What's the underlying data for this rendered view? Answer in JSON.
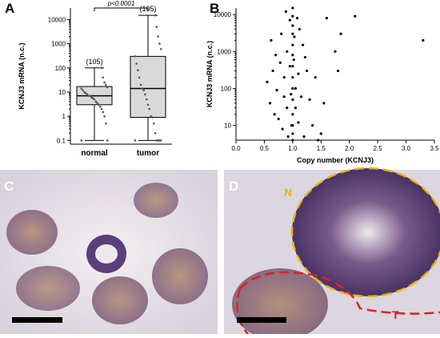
{
  "chart_data": [
    {
      "type": "box",
      "panel_label": "A",
      "ylabel": "KCNJ3 mRNA (n.c.)",
      "log_scale": true,
      "categories": [
        "normal",
        "tumor"
      ],
      "n_labels": [
        "(105)",
        "(105)"
      ],
      "annotation": "p<0.0001",
      "min": [
        0.1,
        0.1
      ],
      "q1": [
        3,
        0.9
      ],
      "median": [
        7,
        14
      ],
      "q3": [
        17,
        300
      ],
      "max": [
        100,
        15000
      ],
      "box_color": "#d9d9d9",
      "points": [
        [
          0.1,
          0.1,
          0.5,
          1,
          1.5,
          2,
          2.5,
          3,
          3.5,
          4,
          5,
          5.5,
          6,
          7,
          7,
          8,
          9,
          10,
          12,
          14,
          16,
          20,
          25,
          40,
          100
        ],
        [
          0.1,
          0.1,
          0.1,
          0.1,
          0.1,
          0.2,
          0.5,
          0.9,
          1,
          2,
          3,
          5,
          8,
          12,
          14,
          20,
          40,
          80,
          150,
          300,
          600,
          1000,
          2000,
          5000,
          15000
        ]
      ],
      "ylim": [
        0.07,
        30000
      ],
      "yticks": [
        0.1,
        1,
        10,
        100,
        1000,
        10000
      ]
    },
    {
      "type": "scatter",
      "panel_label": "B",
      "ylabel": "KCNJ3 mRNA (n.c.)",
      "xlabel": "Copy number (KCNJ3)",
      "log_scale": true,
      "color": "#000000",
      "x": [
        0.55,
        0.6,
        0.62,
        0.65,
        0.68,
        0.7,
        0.72,
        0.75,
        0.78,
        0.8,
        0.82,
        0.85,
        0.85,
        0.88,
        0.9,
        0.9,
        0.92,
        0.95,
        0.95,
        0.97,
        0.98,
        1,
        1,
        1,
        1,
        1,
        1,
        1,
        1,
        1,
        1,
        1,
        1,
        1,
        1,
        1.02,
        1.03,
        1.05,
        1.05,
        1.08,
        1.1,
        1.1,
        1.12,
        1.15,
        1.18,
        1.2,
        1.22,
        1.25,
        1.3,
        1.35,
        1.4,
        1.5,
        1.55,
        1.6,
        1.75,
        1.8,
        1.85,
        2.1,
        3.3,
        1.45
      ],
      "y": [
        150,
        40,
        2000,
        300,
        20,
        800,
        90,
        15,
        500,
        3000,
        8,
        200,
        60,
        12000,
        1000,
        30,
        5,
        400,
        7000,
        70,
        10,
        15000,
        9000,
        5000,
        3000,
        1500,
        800,
        400,
        200,
        100,
        50,
        20,
        10,
        6,
        4,
        600,
        2500,
        100,
        30,
        8000,
        250,
        12,
        4000,
        60,
        1500,
        5,
        700,
        300,
        50,
        10,
        200,
        6,
        40,
        8000,
        1000,
        300,
        3000,
        9000,
        2000,
        4
      ],
      "xlim": [
        0,
        3.5
      ],
      "xticks": [
        {
          "value": 0,
          "label": "0.0"
        },
        0.5,
        {
          "value": 1,
          "label": "1.0"
        },
        1.5,
        {
          "value": 2,
          "label": "2.0"
        },
        2.5,
        {
          "value": 3,
          "label": "3.0"
        },
        3.5
      ],
      "ylim": [
        4,
        15000
      ],
      "yticks": [
        10,
        100,
        1000,
        10000
      ]
    }
  ],
  "images": [
    {
      "panel_label": "C"
    },
    {
      "panel_label": "D",
      "annotations": [
        "N",
        "T"
      ]
    }
  ]
}
